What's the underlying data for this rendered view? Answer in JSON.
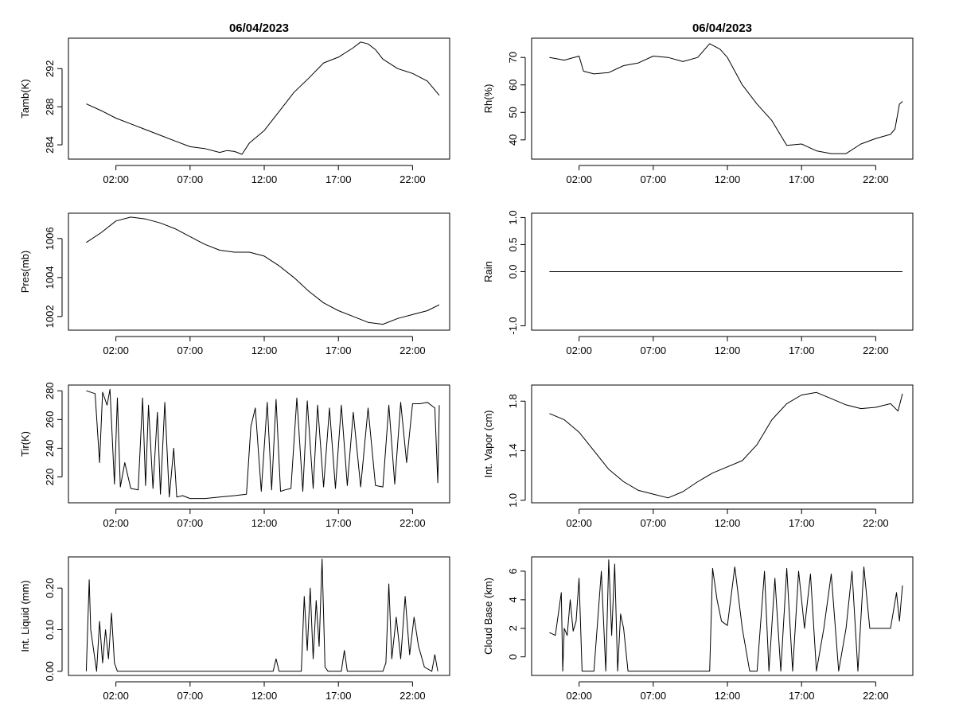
{
  "chart_data": [
    {
      "id": "tamb",
      "type": "line",
      "title": "06/04/2023",
      "xlabel": "",
      "ylabel": "Tamb(K)",
      "ylim": [
        282.5,
        295.2
      ],
      "yticks": [
        284,
        288,
        292
      ],
      "xlim": [
        -1.2,
        24.5
      ],
      "xticks": [
        2,
        7,
        12,
        17,
        22
      ],
      "xticklabels": [
        "02:00",
        "07:00",
        "12:00",
        "17:00",
        "22:00"
      ],
      "series": [
        {
          "x": [
            0,
            1,
            2,
            3,
            4,
            5,
            6,
            7,
            8,
            9,
            9.5,
            10,
            10.5,
            11,
            12,
            13,
            14,
            15,
            16,
            17,
            18,
            18.5,
            19,
            19.5,
            20,
            21,
            22,
            23,
            23.8
          ],
          "y": [
            288.3,
            287.6,
            286.8,
            286.2,
            285.6,
            285.0,
            284.4,
            283.8,
            283.6,
            283.2,
            283.4,
            283.3,
            283.0,
            284.2,
            285.5,
            287.5,
            289.5,
            291.0,
            292.6,
            293.2,
            294.2,
            294.8,
            294.6,
            294.0,
            293.0,
            292.0,
            291.5,
            290.7,
            289.2
          ]
        }
      ]
    },
    {
      "id": "rh",
      "type": "line",
      "title": "06/04/2023",
      "xlabel": "",
      "ylabel": "Rh(%)",
      "ylim": [
        33,
        77
      ],
      "yticks": [
        40,
        50,
        60,
        70
      ],
      "xlim": [
        -1.2,
        24.5
      ],
      "xticks": [
        2,
        7,
        12,
        17,
        22
      ],
      "xticklabels": [
        "02:00",
        "07:00",
        "12:00",
        "17:00",
        "22:00"
      ],
      "series": [
        {
          "x": [
            0,
            0.5,
            1,
            2,
            2.3,
            3,
            4,
            5,
            6,
            7,
            8,
            9,
            10,
            10.8,
            11.5,
            12,
            13,
            14,
            15,
            16,
            17,
            18,
            19,
            20,
            21,
            22,
            23,
            23.3,
            23.6,
            23.8
          ],
          "y": [
            70,
            69.5,
            69,
            70.5,
            65,
            64,
            64.5,
            67,
            68,
            70.5,
            70,
            68.5,
            70,
            75,
            73,
            70,
            60,
            53,
            47,
            38,
            38.5,
            36,
            35,
            35,
            38.5,
            40.5,
            42,
            44,
            53,
            54
          ]
        }
      ]
    },
    {
      "id": "pres",
      "type": "line",
      "title": "",
      "xlabel": "",
      "ylabel": "Pres(mb)",
      "ylim": [
        1001.3,
        1007.3
      ],
      "yticks": [
        1002,
        1004,
        1006
      ],
      "xlim": [
        -1.2,
        24.5
      ],
      "xticks": [
        2,
        7,
        12,
        17,
        22
      ],
      "xticklabels": [
        "02:00",
        "07:00",
        "12:00",
        "17:00",
        "22:00"
      ],
      "series": [
        {
          "x": [
            0,
            1,
            2,
            3,
            4,
            5,
            6,
            7,
            8,
            9,
            10,
            11,
            12,
            13,
            14,
            15,
            16,
            17,
            18,
            19,
            20,
            21,
            22,
            23,
            23.8
          ],
          "y": [
            1005.8,
            1006.3,
            1006.9,
            1007.1,
            1007.0,
            1006.8,
            1006.5,
            1006.1,
            1005.7,
            1005.4,
            1005.3,
            1005.3,
            1005.1,
            1004.6,
            1004.0,
            1003.3,
            1002.7,
            1002.3,
            1002.0,
            1001.7,
            1001.6,
            1001.9,
            1002.1,
            1002.3,
            1002.6
          ]
        }
      ]
    },
    {
      "id": "rain",
      "type": "line",
      "title": "",
      "xlabel": "",
      "ylabel": "Rain",
      "ylim": [
        -1.08,
        1.08
      ],
      "yticks": [
        -1.0,
        0.0,
        0.5,
        1.0
      ],
      "yticklabels": [
        "-1.0",
        "0.0",
        "0.5",
        "1.0"
      ],
      "xlim": [
        -1.2,
        24.5
      ],
      "xticks": [
        2,
        7,
        12,
        17,
        22
      ],
      "xticklabels": [
        "02:00",
        "07:00",
        "12:00",
        "17:00",
        "22:00"
      ],
      "series": [
        {
          "x": [
            0,
            23.8
          ],
          "y": [
            0,
            0
          ]
        }
      ]
    },
    {
      "id": "tir",
      "type": "line",
      "title": "",
      "xlabel": "",
      "ylabel": "Tir(K)",
      "ylim": [
        202,
        284
      ],
      "yticks": [
        220,
        240,
        260,
        280
      ],
      "xlim": [
        -1.2,
        24.5
      ],
      "xticks": [
        2,
        7,
        12,
        17,
        22
      ],
      "xticklabels": [
        "02:00",
        "07:00",
        "12:00",
        "17:00",
        "22:00"
      ],
      "series": [
        {
          "x": [
            0,
            0.6,
            0.9,
            1.1,
            1.4,
            1.6,
            1.9,
            2.1,
            2.3,
            2.6,
            3.0,
            3.5,
            3.8,
            4.0,
            4.2,
            4.5,
            4.8,
            5.0,
            5.3,
            5.6,
            5.9,
            6.1,
            6.5,
            7.0,
            8.0,
            9.0,
            10.0,
            10.8,
            11.1,
            11.4,
            11.8,
            12.2,
            12.5,
            12.8,
            13.1,
            13.4,
            13.8,
            14.2,
            14.6,
            14.9,
            15.3,
            15.6,
            16.0,
            16.4,
            16.8,
            17.2,
            17.6,
            18.0,
            18.5,
            19.0,
            19.5,
            20.0,
            20.4,
            20.8,
            21.2,
            21.6,
            22.0,
            22.5,
            23.0,
            23.5,
            23.7,
            23.8
          ],
          "y": [
            280,
            278,
            230,
            279,
            270,
            281,
            215,
            275,
            213,
            230,
            212,
            211,
            275,
            214,
            270,
            212,
            265,
            208,
            272,
            206,
            240,
            206,
            207,
            205,
            205,
            206,
            207,
            208,
            255,
            268,
            210,
            272,
            211,
            274,
            210,
            211,
            212,
            275,
            210,
            273,
            212,
            270,
            213,
            268,
            212,
            270,
            214,
            265,
            213,
            268,
            214,
            213,
            270,
            215,
            272,
            230,
            271,
            271,
            272,
            268,
            216,
            270
          ]
        }
      ]
    },
    {
      "id": "vapor",
      "type": "line",
      "title": "",
      "xlabel": "",
      "ylabel": "Int. Vapor (cm)",
      "ylim": [
        0.98,
        1.93
      ],
      "yticks": [
        1.0,
        1.4,
        1.8
      ],
      "yticklabels": [
        "1.0",
        "1.4",
        "1.8"
      ],
      "xlim": [
        -1.2,
        24.5
      ],
      "xticks": [
        2,
        7,
        12,
        17,
        22
      ],
      "xticklabels": [
        "02:00",
        "07:00",
        "12:00",
        "17:00",
        "22:00"
      ],
      "series": [
        {
          "x": [
            0,
            1,
            2,
            3,
            4,
            5,
            6,
            7,
            8,
            9,
            10,
            11,
            12,
            13,
            14,
            15,
            16,
            17,
            18,
            19,
            20,
            21,
            22,
            23,
            23.5,
            23.8
          ],
          "y": [
            1.7,
            1.65,
            1.55,
            1.4,
            1.25,
            1.15,
            1.08,
            1.05,
            1.02,
            1.07,
            1.15,
            1.22,
            1.27,
            1.32,
            1.45,
            1.65,
            1.78,
            1.85,
            1.87,
            1.82,
            1.77,
            1.74,
            1.75,
            1.78,
            1.72,
            1.86
          ]
        }
      ]
    },
    {
      "id": "liquid",
      "type": "line",
      "title": "",
      "xlabel": "",
      "ylabel": "Int. Liquid (mm)",
      "ylim": [
        -0.01,
        0.275
      ],
      "yticks": [
        0.0,
        0.1,
        0.2
      ],
      "yticklabels": [
        "0.00",
        "0.10",
        "0.20"
      ],
      "xlim": [
        -1.2,
        24.5
      ],
      "xticks": [
        2,
        7,
        12,
        17,
        22
      ],
      "xticklabels": [
        "02:00",
        "07:00",
        "12:00",
        "17:00",
        "22:00"
      ],
      "series": [
        {
          "x": [
            0,
            0.2,
            0.3,
            0.5,
            0.7,
            0.9,
            1.1,
            1.3,
            1.5,
            1.7,
            1.9,
            2.1,
            3,
            8,
            12,
            12.6,
            12.8,
            13,
            14.5,
            14.7,
            14.9,
            15.1,
            15.3,
            15.5,
            15.7,
            15.9,
            16.1,
            16.3,
            17.2,
            17.4,
            17.6,
            20.0,
            20.2,
            20.4,
            20.6,
            20.9,
            21.2,
            21.5,
            21.8,
            22.1,
            22.4,
            22.8,
            23.3,
            23.5,
            23.7
          ],
          "y": [
            0,
            0.22,
            0.1,
            0.05,
            0,
            0.12,
            0.02,
            0.1,
            0.03,
            0.14,
            0.02,
            0,
            0,
            0,
            0,
            0,
            0.03,
            0,
            0,
            0.18,
            0.05,
            0.2,
            0.03,
            0.17,
            0.06,
            0.27,
            0.01,
            0,
            0,
            0.05,
            0,
            0,
            0.02,
            0.21,
            0.03,
            0.13,
            0.03,
            0.18,
            0.04,
            0.13,
            0.06,
            0.01,
            0,
            0.04,
            0
          ]
        }
      ]
    },
    {
      "id": "cloud",
      "type": "line",
      "title": "",
      "xlabel": "",
      "ylabel": "Cloud Base (km)",
      "ylim": [
        -1.3,
        7.0
      ],
      "yticks": [
        0,
        2,
        4,
        6
      ],
      "xlim": [
        -1.2,
        24.5
      ],
      "xticks": [
        2,
        7,
        12,
        17,
        22
      ],
      "xticklabels": [
        "02:00",
        "07:00",
        "12:00",
        "17:00",
        "22:00"
      ],
      "series": [
        {
          "x": [
            0,
            0.4,
            0.8,
            0.9,
            1.0,
            1.2,
            1.4,
            1.6,
            1.8,
            2.0,
            2.2,
            2.4,
            3.0,
            3.5,
            3.8,
            4.0,
            4.2,
            4.4,
            4.6,
            4.8,
            5.0,
            5.3,
            5.6,
            6.0,
            7,
            8,
            9,
            10,
            10.8,
            11.0,
            11.3,
            11.6,
            12.0,
            12.5,
            13.0,
            13.5,
            14.0,
            14.5,
            14.8,
            15.2,
            15.6,
            16.0,
            16.4,
            16.8,
            17.2,
            17.6,
            18.0,
            18.5,
            19.0,
            19.5,
            20.0,
            20.4,
            20.8,
            21.2,
            21.6,
            22.0,
            22.5,
            23.0,
            23.4,
            23.6,
            23.8
          ],
          "y": [
            1.7,
            1.5,
            4.5,
            -1,
            2,
            1.5,
            4,
            1.8,
            2.5,
            5.5,
            -1,
            -1,
            -1,
            6,
            -1,
            6.8,
            1.5,
            6.5,
            -1,
            3,
            2,
            -1,
            -1,
            -1,
            -1,
            -1,
            -1,
            -1,
            -1,
            6.2,
            4,
            2.5,
            2.2,
            6.3,
            2,
            -1,
            -1,
            6,
            -1,
            5.5,
            -1,
            6.2,
            -1,
            6,
            2,
            5.8,
            -1,
            2,
            5.8,
            -1,
            2,
            6,
            -1,
            6.3,
            2,
            2,
            2,
            2,
            4.5,
            2.5,
            5
          ]
        }
      ]
    }
  ]
}
